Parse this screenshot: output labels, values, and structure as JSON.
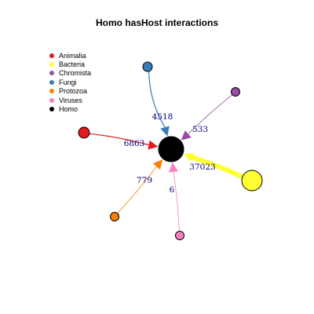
{
  "title": "Homo hasHost interactions",
  "legend": [
    {
      "label": "Animalia",
      "color": "#E41A1C"
    },
    {
      "label": "Bacteria",
      "color": "#FFFF33"
    },
    {
      "label": "Chromista",
      "color": "#984EA3"
    },
    {
      "label": "Fungi",
      "color": "#377EB8"
    },
    {
      "label": "Protozoa",
      "color": "#FF7F00"
    },
    {
      "label": "Viruses",
      "color": "#F781BF"
    },
    {
      "label": "Homo",
      "color": "#000000"
    }
  ],
  "hub": {
    "name": "Homo",
    "color": "#000000"
  },
  "edges": [
    {
      "source": "Fungi",
      "label": "4518",
      "color": "#377EB8"
    },
    {
      "source": "Chromista",
      "label": "533",
      "color": "#984EA3"
    },
    {
      "source": "Animalia",
      "label": "6863",
      "color": "#E41A1C"
    },
    {
      "source": "Bacteria",
      "label": "37023",
      "color": "#FFFF33"
    },
    {
      "source": "Protozoa",
      "label": "779",
      "color": "#FF7F00"
    },
    {
      "source": "Viruses",
      "label": "6",
      "color": "#F781BF"
    }
  ]
}
